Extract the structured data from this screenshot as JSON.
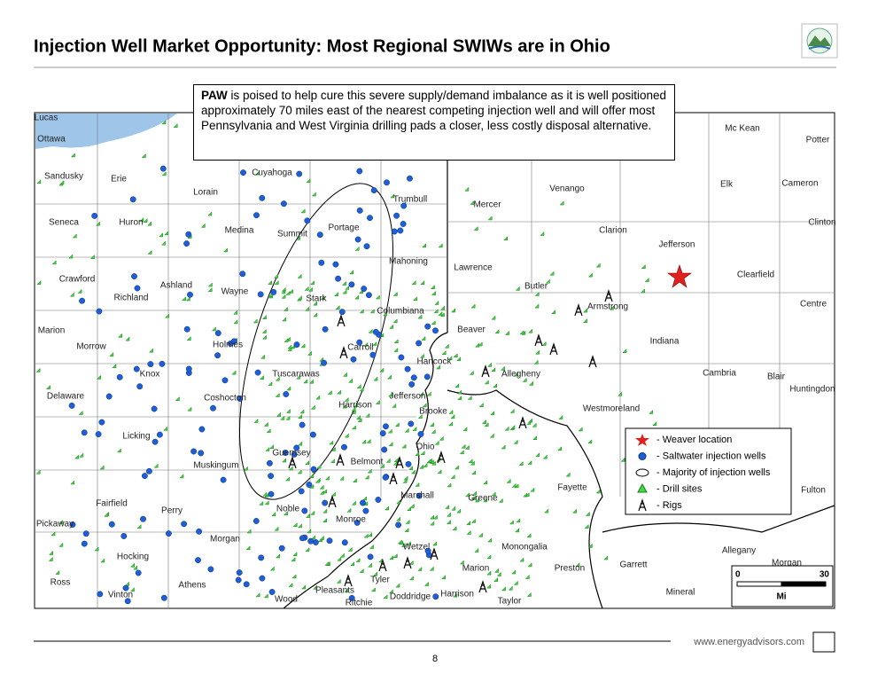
{
  "header": {
    "title": "Injection Well Market Opportunity: Most Regional SWIWs are in Ohio"
  },
  "callout": {
    "lead": "PAW",
    "text": "is poised to help cure this severe supply/demand imbalance as it is well positioned approximately 70 miles east of the nearest competing injection well and will offer most Pennsylvania and West Virginia drilling pads a closer, less costly disposal alternative."
  },
  "map": {
    "counties": [
      "Lucas",
      "Ottawa",
      "Sandusky",
      "Erie",
      "Lorain",
      "Cuyahoga",
      "Seneca",
      "Huron",
      "Medina",
      "Summit",
      "Portage",
      "Trumbull",
      "Mercer",
      "Venango",
      "Mc Kean",
      "Potter",
      "Elk",
      "Cameron",
      "Clinton",
      "Crawford",
      "Ashland",
      "Wayne",
      "Mahoning",
      "Lawrence",
      "Clarion",
      "Jefferson",
      "Richland",
      "Stark",
      "Columbiana",
      "Butler",
      "Armstrong",
      "Clearfield",
      "Centre",
      "Marion",
      "Morrow",
      "Holmes",
      "Carroll",
      "Beaver",
      "Indiana",
      "Hancock",
      "Knox",
      "Tuscarawas",
      "Allegheny",
      "Cambria",
      "Blair",
      "Huntingdon",
      "Delaware",
      "Coshocton",
      "Jefferson",
      "Harrison",
      "Brooke",
      "Westmoreland",
      "Licking",
      "Ohio",
      "Guernsey",
      "Belmont",
      "Muskingum",
      "Fayette",
      "Fulton",
      "Marshall",
      "Greene",
      "Fairfield",
      "Perry",
      "Noble",
      "Pickaway",
      "Monroe",
      "Morgan",
      "Wetzel",
      "Monongalia",
      "Allegany",
      "Garrett",
      "Preston",
      "Morgan",
      "Hocking",
      "Marion",
      "Ross",
      "Athens",
      "Tyler",
      "Pleasants",
      "Harrison",
      "Mineral",
      "Vinton",
      "Wood",
      "Ritchie",
      "Doddridge",
      "Taylor"
    ],
    "legend": [
      "- Weaver location",
      "- Saltwater injection wells",
      "- Majority of injection wells",
      "- Drill sites",
      "- Rigs"
    ],
    "scale": {
      "start": "0",
      "end": "30",
      "unit": "Mi"
    }
  },
  "footer": {
    "url": "www.energyadvisors.com",
    "page": "8"
  }
}
